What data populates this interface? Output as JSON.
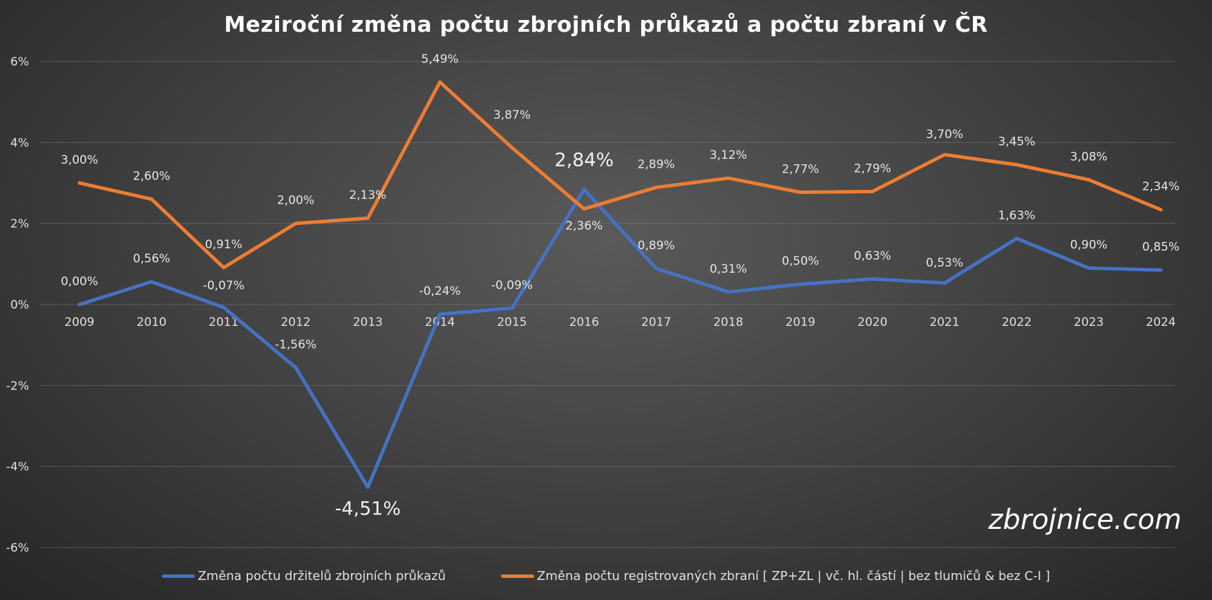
{
  "chart_data": {
    "type": "line",
    "title": "Meziroční změna počtu zbrojních průkazů a počtu zbraní v ČR",
    "xlabel": "",
    "ylabel": "",
    "ylim": [
      -6,
      6
    ],
    "y_ticks": [
      "6%",
      "4%",
      "2%",
      "0%",
      "-2%",
      "-4%",
      "-6%"
    ],
    "y_tick_values": [
      6,
      4,
      2,
      0,
      -2,
      -4,
      -6
    ],
    "grid": true,
    "legend_position": "bottom",
    "categories": [
      "2009",
      "2010",
      "2011",
      "2012",
      "2013",
      "2014",
      "2015",
      "2016",
      "2017",
      "2018",
      "2019",
      "2020",
      "2021",
      "2022",
      "2023",
      "2024"
    ],
    "series": [
      {
        "name": "Změna počtu držitelů zbrojních průkazů",
        "color": "#4472c4",
        "values": [
          0.0,
          0.56,
          -0.07,
          -1.56,
          -4.51,
          -0.24,
          -0.09,
          2.84,
          0.89,
          0.31,
          0.5,
          0.63,
          0.53,
          1.63,
          0.9,
          0.85
        ],
        "labels": [
          "0,00%",
          "0,56%",
          "-0,07%",
          "-1,56%",
          "-4,51%",
          "-0,24%",
          "-0,09%",
          "2,84%",
          "0,89%",
          "0,31%",
          "0,50%",
          "0,63%",
          "0,53%",
          "1,63%",
          "0,90%",
          "0,85%"
        ],
        "emphasized": [
          "-4,51%",
          "2,84%"
        ]
      },
      {
        "name": "Změna počtu registrovaných zbraní [ ZP+ZL | vč. hl. částí | bez tlumičů & bez C-I ]",
        "color": "#ed7d31",
        "values": [
          3.0,
          2.6,
          0.91,
          2.0,
          2.13,
          5.49,
          3.87,
          2.36,
          2.89,
          3.12,
          2.77,
          2.79,
          3.7,
          3.45,
          3.08,
          2.34
        ],
        "labels": [
          "3,00%",
          "2,60%",
          "0,91%",
          "2,00%",
          "2,13%",
          "5,49%",
          "3,87%",
          "2,36%",
          "2,89%",
          "3,12%",
          "2,77%",
          "2,79%",
          "3,70%",
          "3,45%",
          "3,08%",
          "2,34%"
        ],
        "emphasized": []
      }
    ]
  },
  "watermark": "zbrojnice.com"
}
